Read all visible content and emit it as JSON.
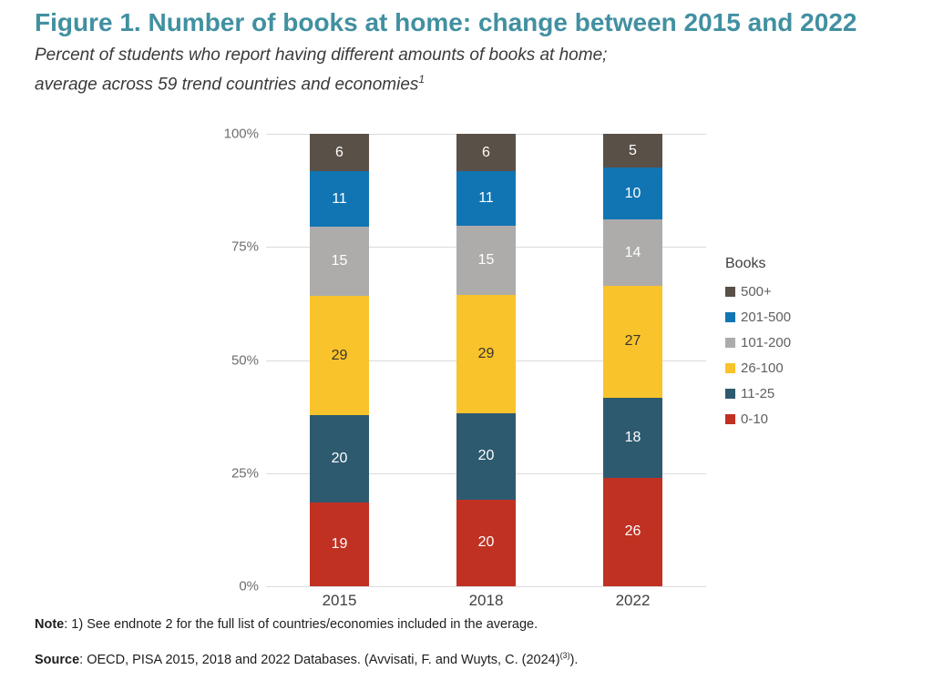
{
  "figure": {
    "title": "Figure 1. Number of books at home: change between 2015 and 2022",
    "subtitle_line1": "Percent of students who report having different amounts of books at home;",
    "subtitle_line2": "average across 59 trend countries and economies",
    "subtitle_note_ref": "1"
  },
  "chart_data": {
    "type": "bar",
    "variant": "stacked-100-percent",
    "categories": [
      "2015",
      "2018",
      "2022"
    ],
    "series": [
      {
        "name": "0-10",
        "color": "#C03122",
        "label_color": "#FFFFFF",
        "values": [
          19,
          20,
          26
        ]
      },
      {
        "name": "11-25",
        "color": "#2E5A70",
        "label_color": "#FFFFFF",
        "values": [
          20,
          20,
          18
        ]
      },
      {
        "name": "26-100",
        "color": "#F9C32B",
        "label_color": "#3B362C",
        "values": [
          29,
          29,
          27
        ]
      },
      {
        "name": "101-200",
        "color": "#ADACAB",
        "label_color": "#FFFFFF",
        "values": [
          15,
          15,
          14
        ]
      },
      {
        "name": "201-500",
        "color": "#1175B3",
        "label_color": "#FFFFFF",
        "values": [
          11,
          11,
          10
        ]
      },
      {
        "name": "500+",
        "color": "#595048",
        "label_color": "#FFFFFF",
        "values": [
          6,
          6,
          5
        ]
      }
    ],
    "stack_order_top_to_bottom": [
      "500+",
      "201-500",
      "101-200",
      "26-100",
      "11-25",
      "0-10"
    ],
    "y_ticks": [
      "100%",
      "75%",
      "50%",
      "25%",
      "0%"
    ],
    "ylim": [
      0,
      100
    ],
    "grid": true,
    "legend": {
      "title": "Books",
      "position": "right",
      "entries": [
        "500+",
        "201-500",
        "101-200",
        "26-100",
        "11-25",
        "0-10"
      ]
    }
  },
  "note": {
    "label": "Note",
    "text": ": 1) See endnote 2 for the full list of countries/economies included in the average."
  },
  "source": {
    "label": "Source",
    "text": ": OECD, PISA 2015, 2018 and 2022 Databases. (Avvisati, F. and Wuyts, C. (2024)",
    "reference_superscript": "(3)",
    "text_end": ")."
  },
  "colors": {
    "title_accent": "#4190A1",
    "gridline": "#DBDBDB",
    "axis_tick_text": "#6E6E6E",
    "xaxis_label_text": "#3F3F3F",
    "legend_title_text": "#3F3F3F",
    "legend_item_text": "#5F5F5F",
    "footnote_text": "#1E1E1E",
    "background": "#FFFFFF"
  }
}
